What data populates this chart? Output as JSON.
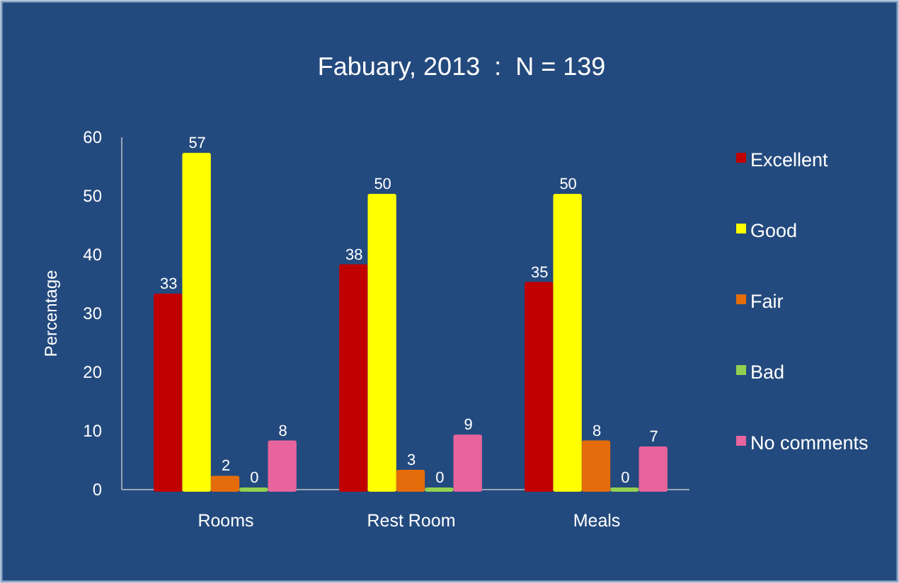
{
  "chart_data": {
    "type": "bar",
    "title": "Fabuary, 2013  :  N = 139",
    "ylabel": "Percentage",
    "categories": [
      "Rooms",
      "Rest Room",
      "Meals"
    ],
    "series": [
      {
        "name": "Excellent",
        "color": "#c00000",
        "values": [
          33,
          38,
          35
        ]
      },
      {
        "name": "Good",
        "color": "#ffff00",
        "values": [
          57,
          50,
          50
        ]
      },
      {
        "name": "Fair",
        "color": "#e46c0a",
        "values": [
          2,
          3,
          8
        ]
      },
      {
        "name": "Bad",
        "color": "#92d050",
        "values": [
          0,
          0,
          0
        ]
      },
      {
        "name": "No comments",
        "color": "#e8649c",
        "values": [
          8,
          9,
          7
        ]
      }
    ],
    "ylim": [
      0,
      60
    ],
    "yticks": [
      0,
      10,
      20,
      30,
      40,
      50,
      60
    ],
    "grid": false,
    "legend": "right",
    "data_labels": true
  }
}
